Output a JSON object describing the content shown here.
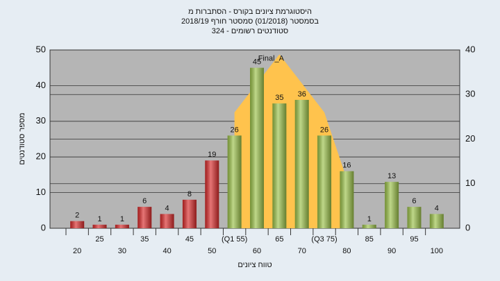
{
  "chart_data": {
    "type": "bar",
    "title": [
      "היסטוגרמת ציונים בקורס - הסתברות מ",
      "בסמסטר  (01/2018)  סמסטר חורף 2018/19",
      "סטודנטים רשומים - 324"
    ],
    "xlabel": "טווח ציונים",
    "ylabel": "מספר סטודנטים",
    "categories": [
      "20",
      "25",
      "30",
      "35",
      "40",
      "45",
      "50",
      "(Q1 55)",
      "60",
      "65",
      "70",
      "(Q3 75)",
      "80",
      "85",
      "90",
      "95",
      "100"
    ],
    "values": [
      2,
      1,
      1,
      6,
      4,
      8,
      19,
      26,
      45,
      35,
      36,
      26,
      16,
      1,
      13,
      6,
      4
    ],
    "colors": [
      "#d92b2b",
      "#d92b2b",
      "#d92b2b",
      "#d92b2b",
      "#d92b2b",
      "#d92b2b",
      "#d92b2b",
      "#9cc24a",
      "#9cc24a",
      "#9cc24a",
      "#9cc24a",
      "#9cc24a",
      "#9cc24a",
      "#9cc24a",
      "#9cc24a",
      "#9cc24a",
      "#9cc24a"
    ],
    "series": [
      {
        "name": "Final_A",
        "axis": "y2",
        "color": "#ffc34d",
        "values": [
          null,
          null,
          null,
          null,
          null,
          null,
          null,
          26,
          null,
          39,
          null,
          26,
          11,
          null,
          null,
          null,
          null
        ]
      }
    ],
    "ylim": [
      0,
      50
    ],
    "yticks": [
      0,
      10,
      20,
      30,
      40,
      50
    ],
    "y2lim": [
      0,
      40
    ],
    "y2ticks": [
      0,
      10,
      20,
      30,
      40
    ],
    "grid": true
  }
}
